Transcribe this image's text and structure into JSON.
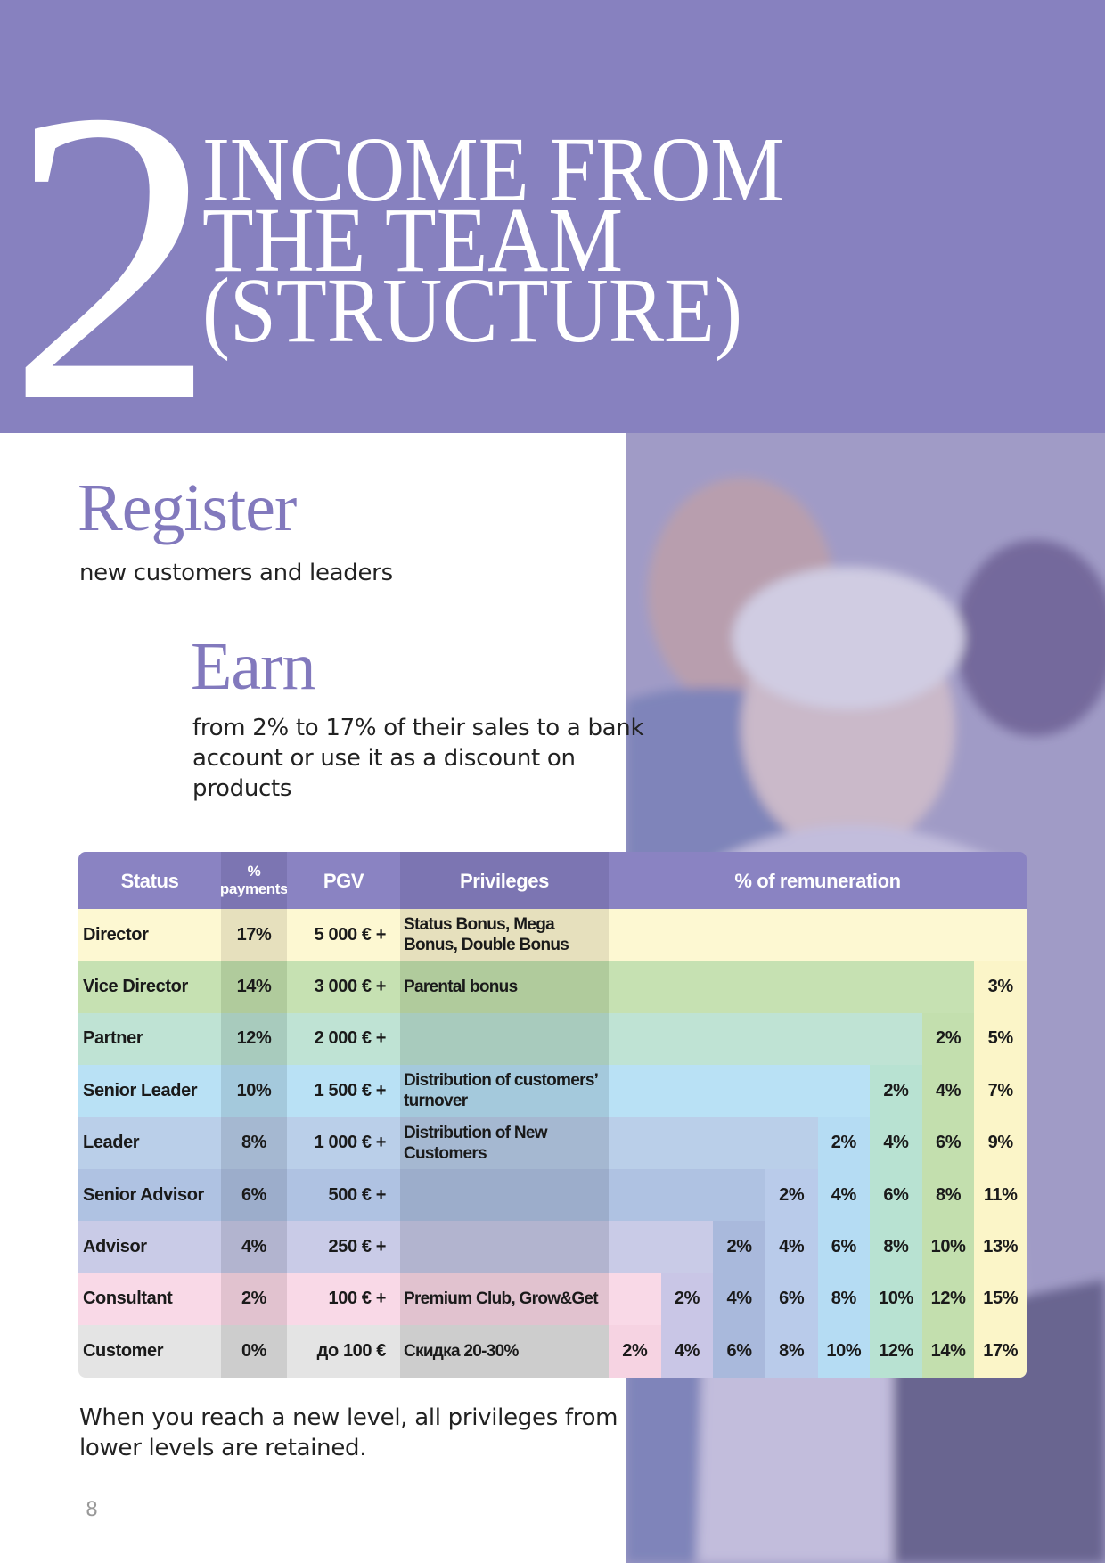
{
  "header": {
    "number": "2",
    "title_lines": [
      "INCOME FROM",
      "THE TEAM",
      "(STRUCTURE)"
    ]
  },
  "register": {
    "heading": "Register",
    "text": "new customers and leaders"
  },
  "earn": {
    "heading": "Earn",
    "text_lines": [
      "from 2% to 17% of their sales to a bank",
      "account or use it as a discount on",
      "products"
    ]
  },
  "table": {
    "headers": [
      "Status",
      "% payments",
      "PGV",
      "Privileges",
      "% of remuneration"
    ],
    "rows": [
      {
        "status": "Director",
        "payments": "17%",
        "pgv": "5 000 € +",
        "privileges": "Status Bonus, Mega Bonus, Double Bonus",
        "remuneration": []
      },
      {
        "status": "Vice Director",
        "payments": "14%",
        "pgv": "3 000 € +",
        "privileges": "Parental bonus",
        "remuneration": [
          "3%"
        ]
      },
      {
        "status": "Partner",
        "payments": "12%",
        "pgv": "2 000 € +",
        "privileges": "",
        "remuneration": [
          "2%",
          "5%"
        ]
      },
      {
        "status": "Senior Leader",
        "payments": "10%",
        "pgv": "1 500 € +",
        "privileges": "Distribution of customers’ turnover",
        "remuneration": [
          "2%",
          "4%",
          "7%"
        ]
      },
      {
        "status": "Leader",
        "payments": "8%",
        "pgv": "1 000 € +",
        "privileges": "Distribution of New Customers",
        "remuneration": [
          "2%",
          "4%",
          "6%",
          "9%"
        ]
      },
      {
        "status": "Senior Advisor",
        "payments": "6%",
        "pgv": "500 € +",
        "privileges": "",
        "remuneration": [
          "2%",
          "4%",
          "6%",
          "8%",
          "11%"
        ]
      },
      {
        "status": "Advisor",
        "payments": "4%",
        "pgv": "250 € +",
        "privileges": "",
        "remuneration": [
          "2%",
          "4%",
          "6%",
          "8%",
          "10%",
          "13%"
        ]
      },
      {
        "status": "Consultant",
        "payments": "2%",
        "pgv": "100 € +",
        "privileges": "Premium Club, Grow&Get",
        "remuneration": [
          "2%",
          "4%",
          "6%",
          "8%",
          "10%",
          "12%",
          "15%"
        ]
      },
      {
        "status": "Customer",
        "payments": "0%",
        "pgv": "до 100 €",
        "privileges": "Скидка 20-30%",
        "remuneration": [
          "2%",
          "4%",
          "6%",
          "8%",
          "10%",
          "12%",
          "14%",
          "17%"
        ]
      }
    ]
  },
  "note_lines": [
    "When you reach a new level, all privileges from",
    "lower levels are retained."
  ],
  "page_number": "8"
}
